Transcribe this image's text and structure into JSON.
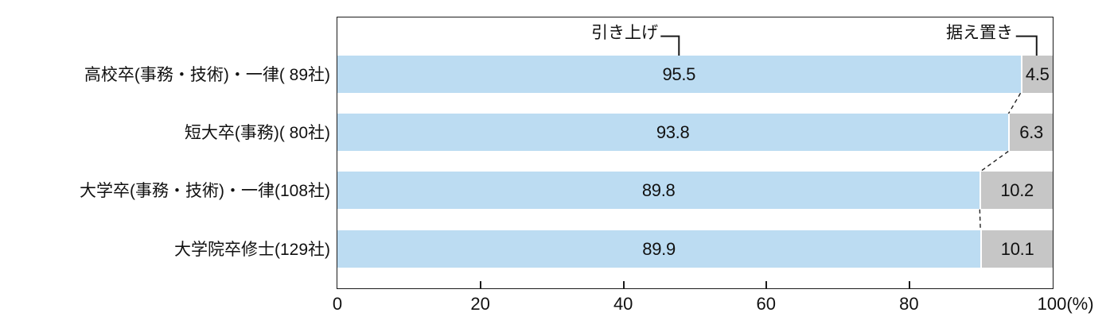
{
  "chart_data": {
    "type": "bar",
    "orientation": "horizontal",
    "stacked": true,
    "title": "",
    "categories": [
      "高校卒(事務・技術)・一律( 89社)",
      "短大卒(事務)( 80社)",
      "大学卒(事務・技術)・一律(108社)",
      "大学院卒修士(129社)"
    ],
    "series": [
      {
        "name": "引き上げ",
        "color": "#bcdcf2",
        "values": [
          95.5,
          93.8,
          89.8,
          89.9
        ]
      },
      {
        "name": "据え置き",
        "color": "#c6c6c6",
        "values": [
          4.5,
          6.3,
          10.2,
          10.1
        ]
      }
    ],
    "x_ticks": [
      0,
      20,
      40,
      60,
      80,
      100
    ],
    "x_unit": "(%)",
    "xlim": [
      0,
      100
    ],
    "legend_position": "annotations-top",
    "grid": false
  },
  "colors": {
    "raise_segment": "#bcdcf2",
    "keep_segment": "#c6c6c6",
    "border": "#1a1a1a",
    "text": "#111111"
  }
}
